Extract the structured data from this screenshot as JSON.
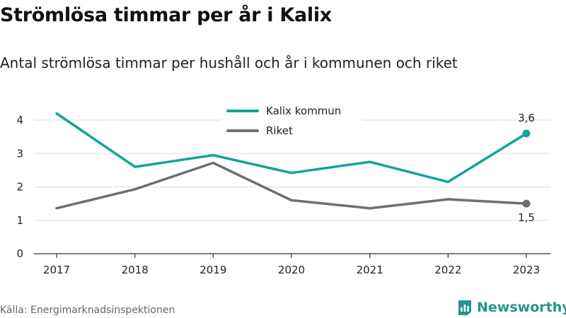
{
  "title": "Strömlösa timmar per år i Kalix",
  "subtitle": "Antal strömlösa timmar per hushåll och år i kommunen och riket",
  "source": "Källa: Energimarknadsinspektionen",
  "brand": "Newsworthy",
  "chart_data": {
    "type": "line",
    "x": [
      "2017",
      "2018",
      "2019",
      "2020",
      "2021",
      "2022",
      "2023"
    ],
    "ylim": [
      0,
      4.5
    ],
    "yticks": [
      "0",
      "1",
      "2",
      "3",
      "4"
    ],
    "grid": true,
    "legend_position": "top-center",
    "series": [
      {
        "name": "Kalix kommun",
        "color": "#12a499",
        "values": [
          4.2,
          2.6,
          2.95,
          2.42,
          2.75,
          2.15,
          3.6
        ],
        "end_label": "3,6"
      },
      {
        "name": "Riket",
        "color": "#6e6e73",
        "values": [
          1.36,
          1.93,
          2.72,
          1.6,
          1.36,
          1.63,
          1.5
        ],
        "end_label": "1,5"
      }
    ]
  }
}
